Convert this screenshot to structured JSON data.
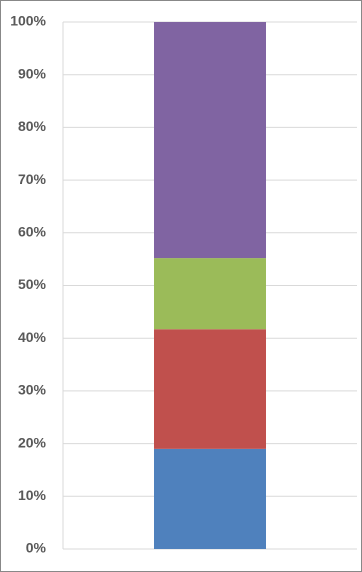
{
  "chart_data": {
    "type": "stacked_bar",
    "categories": [
      null
    ],
    "series": [
      {
        "color": "#4f81bd",
        "values": [
          19.0
        ]
      },
      {
        "color": "#c0504d",
        "values": [
          22.7
        ]
      },
      {
        "color": "#9bbb59",
        "values": [
          13.5
        ]
      },
      {
        "color": "#8064a2",
        "values": [
          44.8
        ]
      }
    ],
    "ylim": [
      0,
      100
    ],
    "yticks": [
      {
        "value": 0,
        "label": "0%"
      },
      {
        "value": 10,
        "label": "10%"
      },
      {
        "value": 20,
        "label": "20%"
      },
      {
        "value": 30,
        "label": "30%"
      },
      {
        "value": 40,
        "label": "40%"
      },
      {
        "value": 50,
        "label": "50%"
      },
      {
        "value": 60,
        "label": "60%"
      },
      {
        "value": 70,
        "label": "70%"
      },
      {
        "value": 80,
        "label": "80%"
      },
      {
        "value": 90,
        "label": "90%"
      },
      {
        "value": 100,
        "label": "100%"
      }
    ],
    "grid": true
  }
}
